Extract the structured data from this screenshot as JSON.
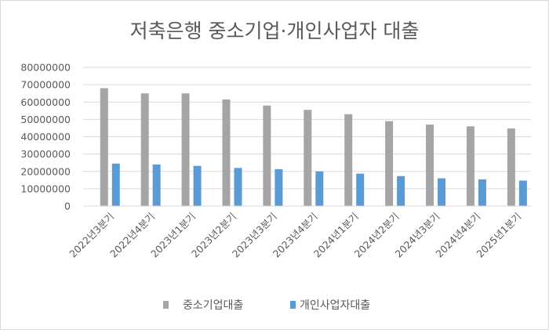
{
  "chart_data": {
    "type": "bar",
    "title": "저축은행 중소기업·개인사업자 대출",
    "xlabel": "",
    "ylabel": "",
    "categories": [
      "2022년3분기",
      "2022년4분기",
      "2023년1분기",
      "2023년2분기",
      "2023년3분기",
      "2023년4분기",
      "2024년1분기",
      "2024년2분기",
      "2024년3분기",
      "2024년4분기",
      "2025년1분기"
    ],
    "series": [
      {
        "name": "중소기업대출",
        "color": "#a5a5a5",
        "values": [
          68000000,
          65000000,
          65000000,
          61500000,
          58000000,
          55500000,
          53000000,
          49000000,
          47000000,
          46000000,
          44800000
        ]
      },
      {
        "name": "개인사업자대출",
        "color": "#5b9bd5",
        "values": [
          24500000,
          24000000,
          23200000,
          22000000,
          21300000,
          20000000,
          18700000,
          17300000,
          16000000,
          15400000,
          14700000
        ]
      }
    ],
    "ylim": [
      0,
      80000000
    ],
    "yticks": [
      "0",
      "10000000",
      "20000000",
      "30000000",
      "40000000",
      "50000000",
      "60000000",
      "70000000",
      "80000000"
    ],
    "grid": true,
    "legend_position": "bottom"
  }
}
